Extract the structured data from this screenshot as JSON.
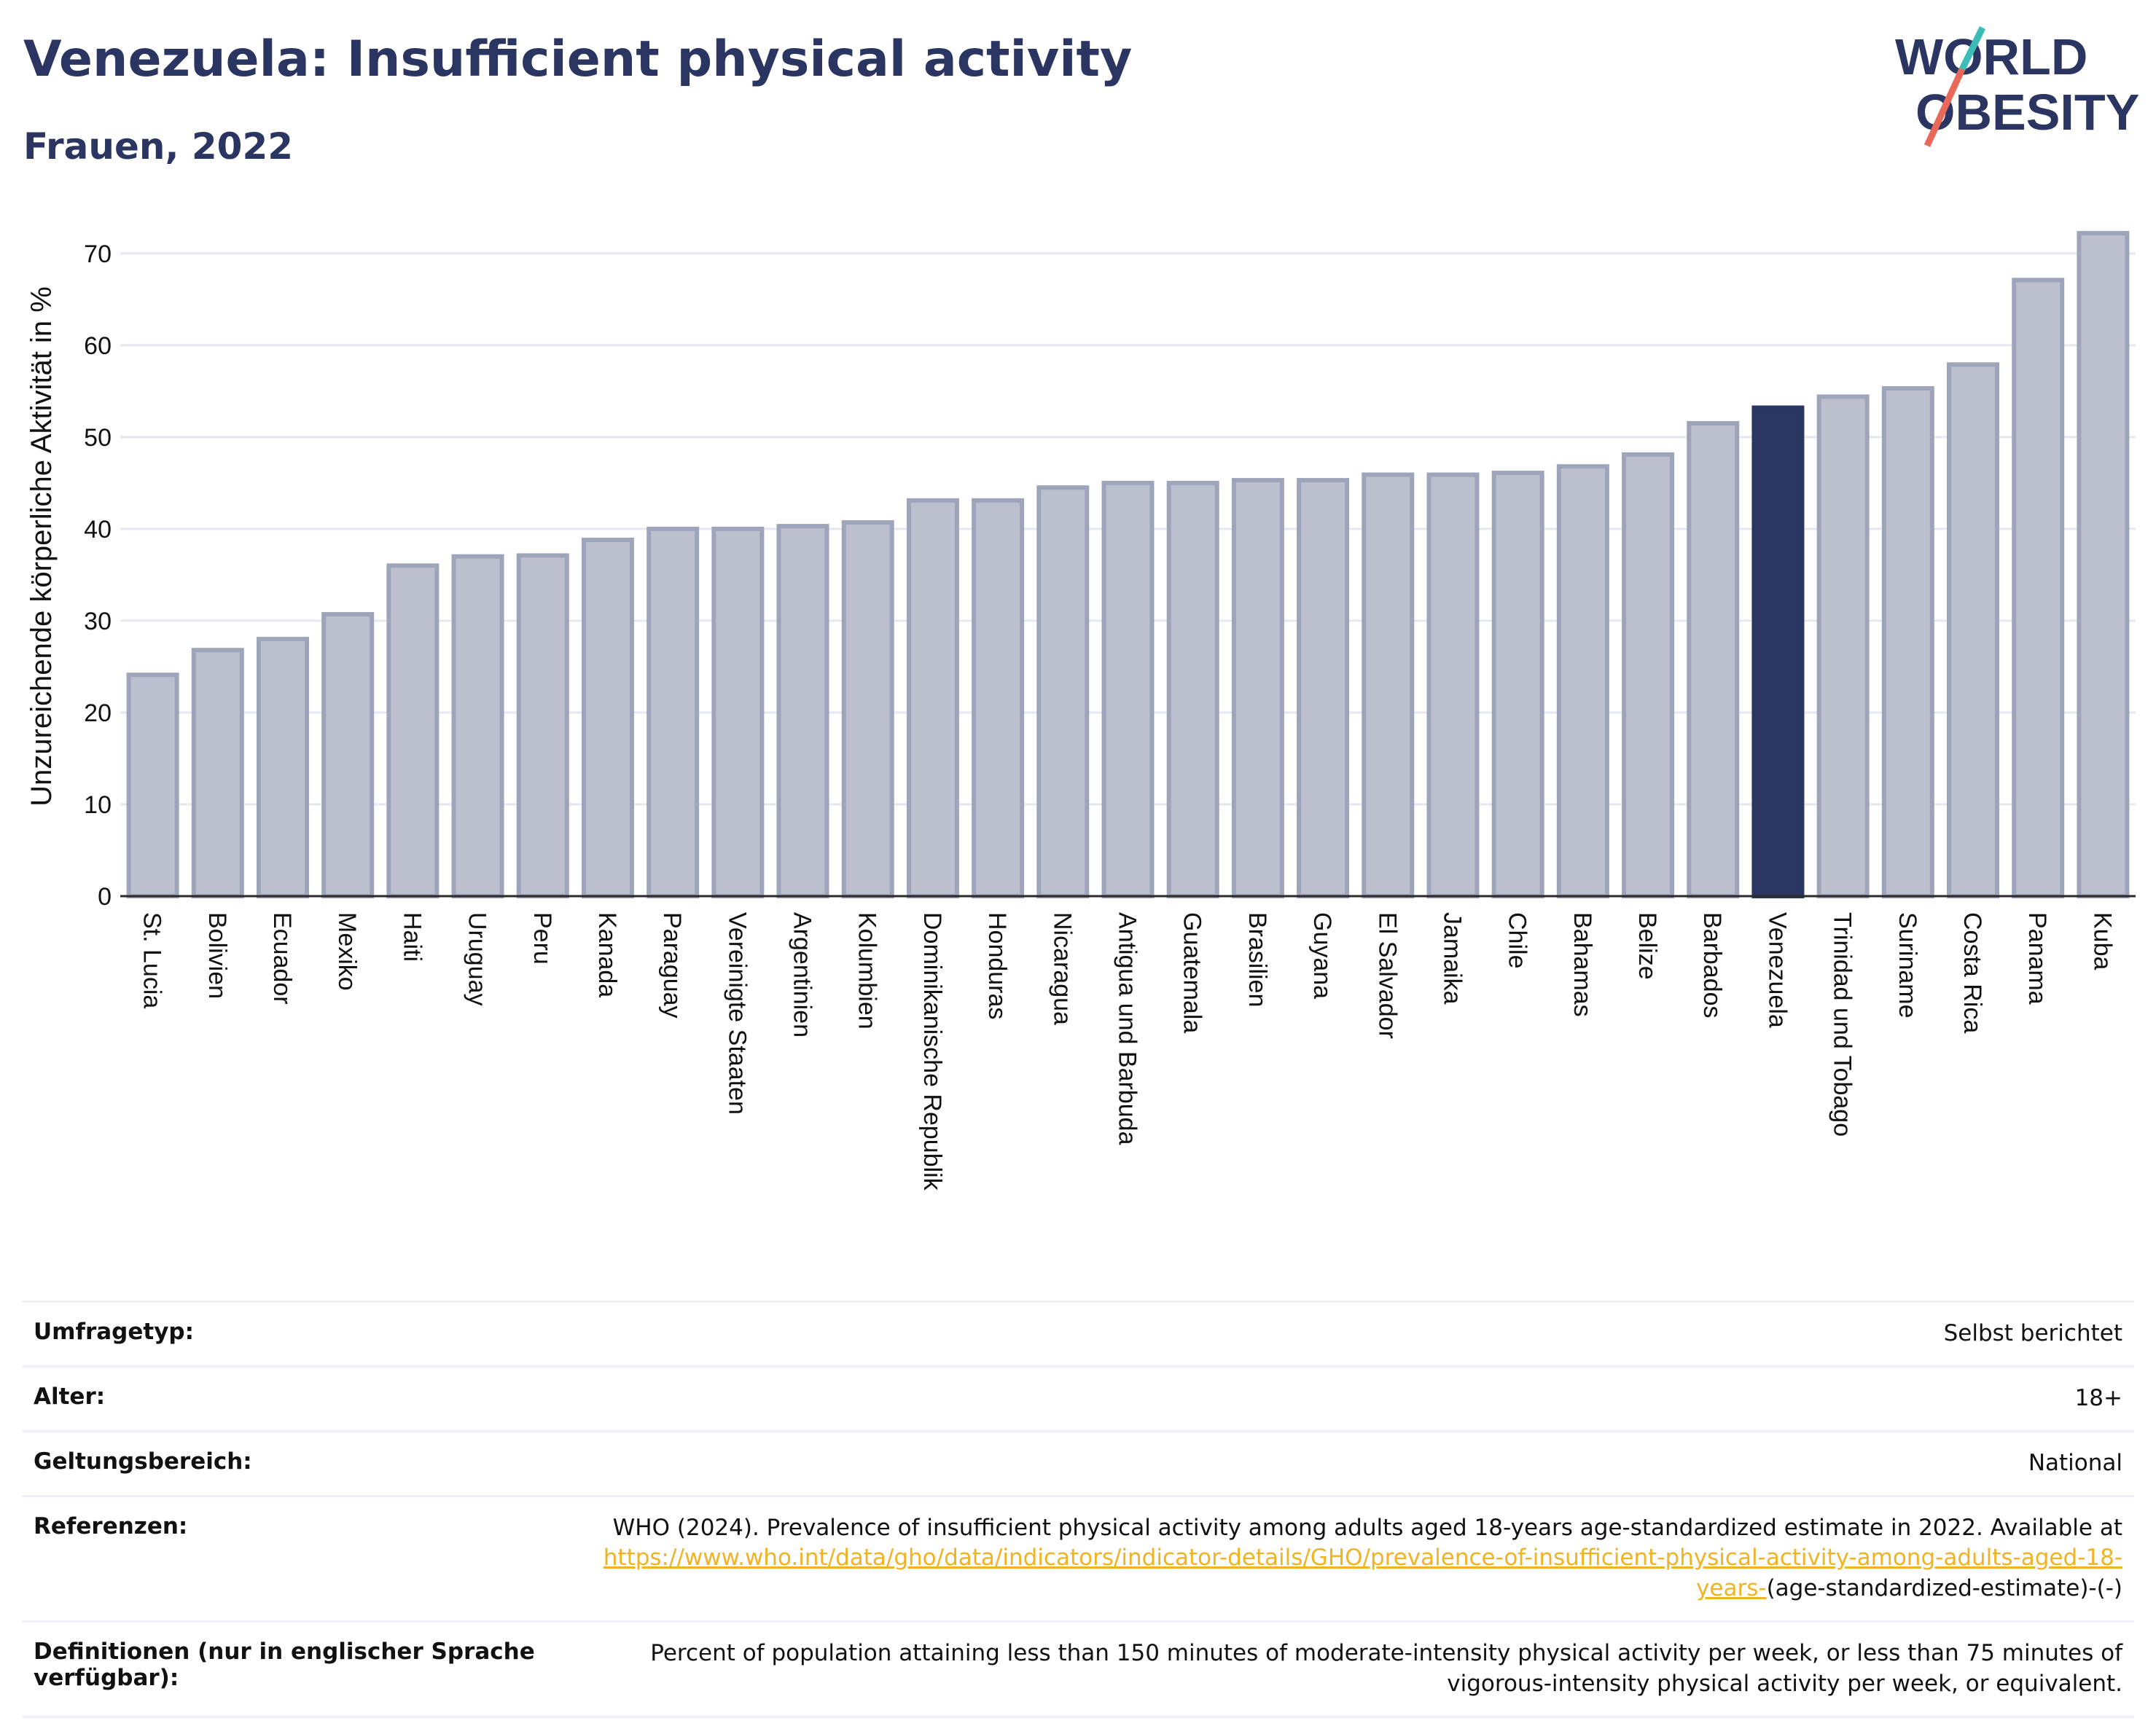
{
  "header": {
    "title": "Venezuela: Insufficient physical activity",
    "subtitle": "Frauen, 2022"
  },
  "logo": {
    "line1": "WORLD",
    "line2": "OBESITY"
  },
  "colors": {
    "bar": "#bcc0ce",
    "bar_border": "#9ea4ba",
    "highlight": "#2a3561",
    "grid": "#e6e8ef",
    "link": "#f0b323"
  },
  "chart_data": {
    "type": "bar",
    "ylabel": "Unzureichende körperliche Aktivität in %",
    "ylim": [
      0,
      73
    ],
    "yticks": [
      0,
      10,
      20,
      30,
      40,
      50,
      60,
      70
    ],
    "highlight": "Venezuela",
    "categories": [
      "St. Lucia",
      "Bolivien",
      "Ecuador",
      "Mexiko",
      "Haiti",
      "Uruguay",
      "Peru",
      "Kanada",
      "Paraguay",
      "Vereinigte Staaten",
      "Argentinien",
      "Kolumbien",
      "Dominikanische Republik",
      "Honduras",
      "Nicaragua",
      "Antigua und Barbuda",
      "Guatemala",
      "Brasilien",
      "Guyana",
      "El Salvador",
      "Jamaika",
      "Chile",
      "Bahamas",
      "Belize",
      "Barbados",
      "Venezuela",
      "Trinidad und Tobago",
      "Suriname",
      "Costa Rica",
      "Panama",
      "Kuba"
    ],
    "values": [
      24.1,
      26.8,
      28.0,
      30.7,
      36.0,
      37.0,
      37.1,
      38.8,
      40.0,
      40.0,
      40.3,
      40.7,
      43.1,
      43.1,
      44.5,
      45.0,
      45.0,
      45.3,
      45.3,
      45.9,
      45.9,
      46.1,
      46.8,
      48.1,
      51.5,
      53.2,
      54.4,
      55.3,
      57.9,
      67.1,
      72.2
    ],
    "grid": true
  },
  "info": {
    "rows": [
      {
        "label": "Umfragetyp:",
        "value": "Selbst berichtet"
      },
      {
        "label": "Alter:",
        "value": "18+"
      },
      {
        "label": "Geltungsbereich:",
        "value": "National"
      }
    ],
    "references_label": "Referenzen:",
    "references_text": "WHO (2024). Prevalence of insufficient physical activity among adults aged 18-years age-standardized estimate in 2022. Available at",
    "references_link": "https://www.who.int/data/gho/data/indicators/indicator-details/GHO/prevalence-of-insufficient-physical-activity-among-adults-aged-18-years-",
    "references_suffix": "(age-standardized-estimate)-(-)",
    "definitions_label": "Definitionen (nur in englischer Sprache verfügbar):",
    "definitions_text": "Percent of population attaining less than 150 minutes of moderate-intensity physical activity per week, or less than 75 minutes of vigorous-intensity physical activity per week, or equivalent."
  }
}
